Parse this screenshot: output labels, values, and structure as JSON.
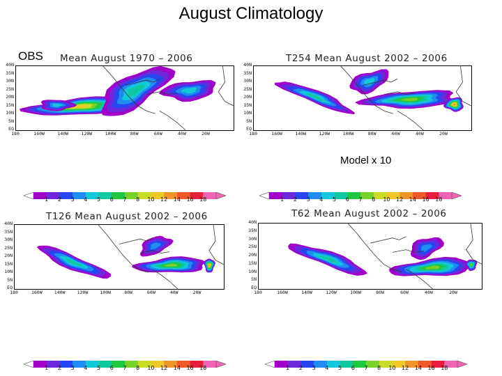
{
  "page": {
    "title": "August Climatology",
    "obs_label": "OBS",
    "model_note": "Model x 10"
  },
  "panels": [
    {
      "title": "Mean August 1970 – 2006",
      "lat_labels": [
        "40N",
        "35N",
        "30N",
        "25N",
        "20N",
        "15N",
        "10N",
        "5N",
        "EQ"
      ],
      "lon_labels": [
        "180",
        "160W",
        "140W",
        "120W",
        "100W",
        "80W",
        "60W",
        "40W",
        "20W"
      ]
    },
    {
      "title": "T254 Mean August 2002 – 2006",
      "lat_labels": [
        "40N",
        "35N",
        "30N",
        "25N",
        "20N",
        "15N",
        "10N",
        "5N",
        "EQ"
      ],
      "lon_labels": [
        "180",
        "160W",
        "140W",
        "120W",
        "100W",
        "80W",
        "60W",
        "40W",
        "20W"
      ]
    },
    {
      "title": "T126 Mean August 2002 – 2006",
      "lat_labels": [
        "40N",
        "35N",
        "30N",
        "25N",
        "20N",
        "15N",
        "10N",
        "5N",
        "EQ"
      ],
      "lon_labels": [
        "180",
        "160W",
        "140W",
        "120W",
        "100W",
        "80W",
        "60W",
        "40W",
        "20W"
      ]
    },
    {
      "title": "T62 Mean August 2002 – 2006",
      "lat_labels": [
        "40N",
        "35N",
        "30N",
        "25N",
        "20N",
        "15N",
        "10N",
        "5N",
        "EQ"
      ],
      "lon_labels": [
        "180",
        "160W",
        "140W",
        "120W",
        "100W",
        "80W",
        "60W",
        "40W",
        "20W"
      ]
    }
  ],
  "colorbar": {
    "ticks": [
      "1",
      "2",
      "3",
      "4",
      "5",
      "6",
      "7",
      "8",
      "10",
      "12",
      "14",
      "16",
      "18"
    ],
    "colors": [
      "#a000c8",
      "#6e28dc",
      "#2846f0",
      "#1e8cf0",
      "#14c8dc",
      "#10c8a0",
      "#20c840",
      "#78d228",
      "#c8dc28",
      "#f0c828",
      "#f09628",
      "#f05a28",
      "#e61e3c",
      "#f064b4"
    ]
  }
}
